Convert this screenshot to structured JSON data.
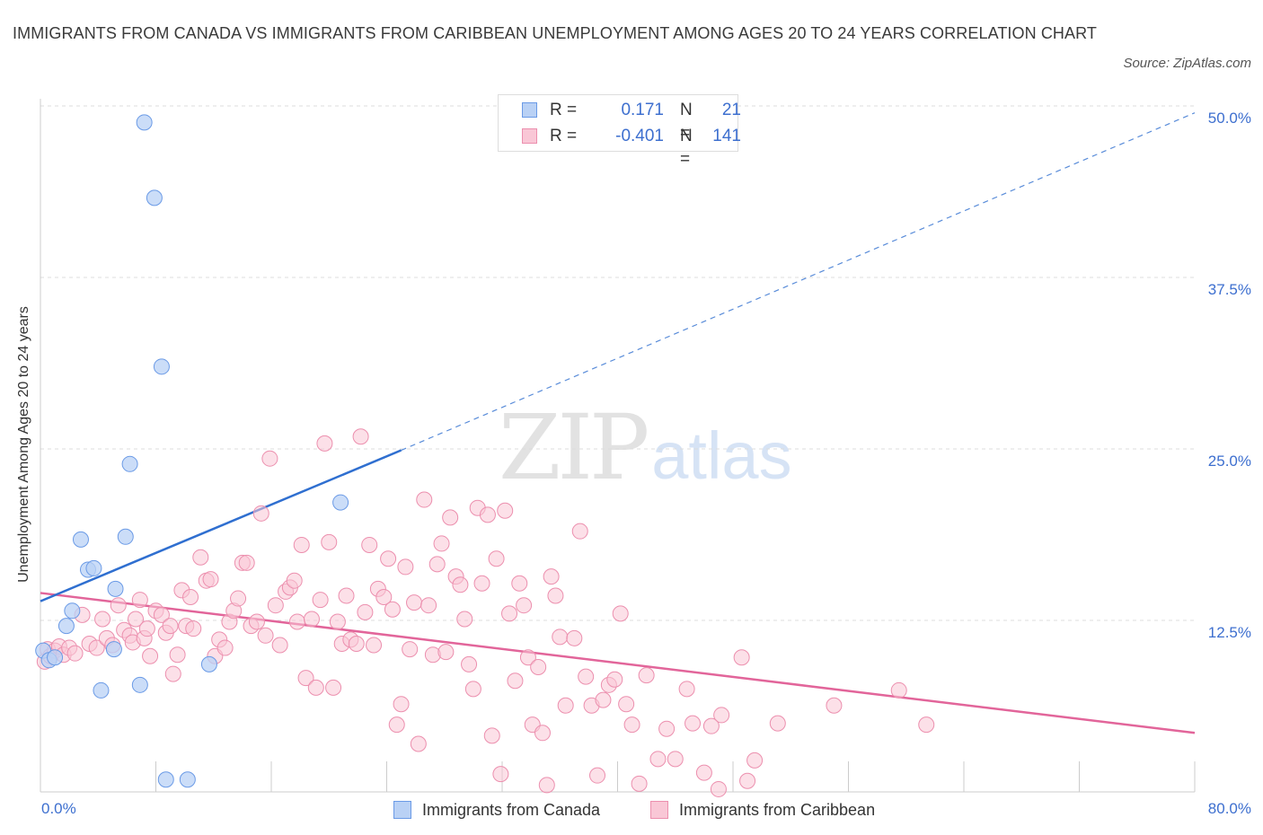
{
  "title": "IMMIGRANTS FROM CANADA VS IMMIGRANTS FROM CARIBBEAN UNEMPLOYMENT AMONG AGES 20 TO 24 YEARS CORRELATION CHART",
  "source": "Source: ZipAtlas.com",
  "watermark": {
    "zip": "ZIP",
    "atlas": "atlas"
  },
  "colors": {
    "canada_fill": "#b9d1f5",
    "canada_stroke": "#6a9ae6",
    "canada_line": "#2f6fd0",
    "caribbean_fill": "#f9c7d6",
    "caribbean_stroke": "#ec8fae",
    "caribbean_line": "#e2659a",
    "tick_label": "#3d6fcf",
    "grid": "#dcdcdc"
  },
  "legend_top": {
    "rows": [
      {
        "r_label": "R =",
        "r_value": "0.171",
        "n_label": "N =",
        "n_value": "21"
      },
      {
        "r_label": "R =",
        "r_value": "-0.401",
        "n_label": "N =",
        "n_value": "141"
      }
    ]
  },
  "legend_bottom": {
    "canada": "Immigrants from Canada",
    "caribbean": "Immigrants from Caribbean"
  },
  "chart_data": {
    "type": "scatter",
    "title": "IMMIGRANTS FROM CANADA VS IMMIGRANTS FROM CARIBBEAN UNEMPLOYMENT AMONG AGES 20 TO 24 YEARS CORRELATION CHART",
    "xlabel": "",
    "ylabel": "Unemployment Among Ages 20 to 24 years",
    "xlim": [
      0,
      80
    ],
    "ylim": [
      0,
      50
    ],
    "x_tick_labels": [
      {
        "value": 0,
        "label": "0.0%"
      },
      {
        "value": 80,
        "label": "80.0%"
      }
    ],
    "y_tick_labels": [
      {
        "value": 12.5,
        "label": "12.5%"
      },
      {
        "value": 25,
        "label": "25.0%"
      },
      {
        "value": 37.5,
        "label": "37.5%"
      },
      {
        "value": 50,
        "label": "50.0%"
      }
    ],
    "grid": true,
    "legend_position": "top-center",
    "series": [
      {
        "name": "Immigrants from Canada",
        "stats": {
          "R": 0.171,
          "N": 21
        },
        "points": [
          [
            0.2,
            10.3
          ],
          [
            0.6,
            9.6
          ],
          [
            1.0,
            9.8
          ],
          [
            1.8,
            12.1
          ],
          [
            2.2,
            13.2
          ],
          [
            2.8,
            18.4
          ],
          [
            3.3,
            16.2
          ],
          [
            3.7,
            16.3
          ],
          [
            4.2,
            7.4
          ],
          [
            5.1,
            10.4
          ],
          [
            5.2,
            14.8
          ],
          [
            5.9,
            18.6
          ],
          [
            6.2,
            23.9
          ],
          [
            6.9,
            7.8
          ],
          [
            7.2,
            48.8
          ],
          [
            7.9,
            43.3
          ],
          [
            8.4,
            31.0
          ],
          [
            8.7,
            0.9
          ],
          [
            10.2,
            0.9
          ],
          [
            11.7,
            9.3
          ],
          [
            20.8,
            21.1
          ]
        ],
        "trend_solid": [
          [
            0,
            13.9
          ],
          [
            25,
            24.9
          ]
        ],
        "trend_dashed": [
          [
            25,
            24.9
          ],
          [
            80,
            49.5
          ]
        ]
      },
      {
        "name": "Immigrants from Caribbean",
        "stats": {
          "R": -0.401,
          "N": 141
        },
        "points": [
          [
            0.3,
            9.5
          ],
          [
            0.5,
            10.4
          ],
          [
            0.7,
            9.9
          ],
          [
            1.0,
            10.3
          ],
          [
            1.3,
            10.6
          ],
          [
            1.6,
            10.0
          ],
          [
            2.0,
            10.5
          ],
          [
            2.4,
            10.1
          ],
          [
            2.9,
            12.9
          ],
          [
            3.4,
            10.8
          ],
          [
            3.9,
            10.5
          ],
          [
            4.3,
            12.6
          ],
          [
            4.6,
            11.2
          ],
          [
            5.0,
            10.7
          ],
          [
            5.4,
            13.6
          ],
          [
            5.8,
            11.8
          ],
          [
            6.2,
            11.4
          ],
          [
            6.4,
            10.9
          ],
          [
            6.6,
            12.6
          ],
          [
            6.9,
            14.0
          ],
          [
            7.2,
            11.2
          ],
          [
            7.4,
            11.9
          ],
          [
            7.6,
            9.9
          ],
          [
            8.0,
            13.2
          ],
          [
            8.4,
            12.9
          ],
          [
            8.7,
            11.6
          ],
          [
            9.0,
            12.1
          ],
          [
            9.2,
            8.6
          ],
          [
            9.5,
            10.0
          ],
          [
            9.8,
            14.7
          ],
          [
            10.1,
            12.1
          ],
          [
            10.4,
            14.2
          ],
          [
            10.6,
            11.9
          ],
          [
            11.1,
            17.1
          ],
          [
            11.5,
            15.4
          ],
          [
            11.8,
            15.5
          ],
          [
            12.1,
            9.9
          ],
          [
            12.4,
            11.1
          ],
          [
            12.8,
            10.5
          ],
          [
            13.1,
            12.4
          ],
          [
            13.4,
            13.2
          ],
          [
            13.7,
            14.1
          ],
          [
            14.0,
            16.7
          ],
          [
            14.3,
            16.7
          ],
          [
            14.6,
            12.1
          ],
          [
            15.0,
            12.4
          ],
          [
            15.3,
            20.3
          ],
          [
            15.6,
            11.4
          ],
          [
            15.9,
            24.3
          ],
          [
            16.3,
            13.6
          ],
          [
            16.6,
            10.7
          ],
          [
            17.0,
            14.6
          ],
          [
            17.3,
            14.9
          ],
          [
            17.6,
            15.4
          ],
          [
            17.8,
            12.4
          ],
          [
            18.1,
            18.0
          ],
          [
            18.4,
            8.3
          ],
          [
            18.8,
            12.6
          ],
          [
            19.1,
            7.6
          ],
          [
            19.4,
            14.0
          ],
          [
            19.7,
            25.4
          ],
          [
            20.0,
            18.2
          ],
          [
            20.3,
            7.6
          ],
          [
            20.6,
            12.4
          ],
          [
            20.9,
            10.8
          ],
          [
            21.2,
            14.3
          ],
          [
            21.5,
            11.1
          ],
          [
            21.9,
            10.8
          ],
          [
            22.2,
            25.9
          ],
          [
            22.5,
            13.1
          ],
          [
            22.8,
            18.0
          ],
          [
            23.1,
            10.7
          ],
          [
            23.4,
            14.8
          ],
          [
            23.8,
            14.2
          ],
          [
            24.1,
            17.0
          ],
          [
            24.4,
            13.3
          ],
          [
            24.7,
            4.9
          ],
          [
            25.0,
            6.4
          ],
          [
            25.3,
            16.4
          ],
          [
            25.6,
            10.4
          ],
          [
            25.9,
            13.8
          ],
          [
            26.2,
            3.5
          ],
          [
            26.6,
            21.3
          ],
          [
            26.9,
            13.6
          ],
          [
            27.2,
            10.0
          ],
          [
            27.5,
            16.6
          ],
          [
            27.8,
            18.1
          ],
          [
            28.1,
            10.2
          ],
          [
            28.4,
            20.0
          ],
          [
            28.8,
            15.7
          ],
          [
            29.1,
            15.1
          ],
          [
            29.4,
            12.6
          ],
          [
            29.7,
            9.3
          ],
          [
            30.0,
            7.5
          ],
          [
            30.3,
            20.7
          ],
          [
            30.6,
            15.2
          ],
          [
            31.0,
            20.2
          ],
          [
            31.3,
            4.1
          ],
          [
            31.6,
            17.0
          ],
          [
            31.9,
            1.3
          ],
          [
            32.2,
            20.5
          ],
          [
            32.5,
            13.0
          ],
          [
            32.9,
            8.1
          ],
          [
            33.2,
            15.2
          ],
          [
            33.5,
            13.6
          ],
          [
            33.8,
            9.8
          ],
          [
            34.1,
            4.9
          ],
          [
            34.5,
            9.1
          ],
          [
            34.8,
            4.3
          ],
          [
            35.1,
            0.5
          ],
          [
            35.4,
            15.7
          ],
          [
            35.7,
            14.3
          ],
          [
            36.0,
            11.3
          ],
          [
            36.4,
            6.3
          ],
          [
            37.0,
            11.2
          ],
          [
            37.4,
            19.0
          ],
          [
            37.8,
            8.4
          ],
          [
            38.2,
            6.3
          ],
          [
            38.6,
            1.2
          ],
          [
            39.0,
            6.7
          ],
          [
            39.4,
            7.8
          ],
          [
            39.8,
            8.2
          ],
          [
            40.2,
            13.0
          ],
          [
            40.6,
            6.4
          ],
          [
            41.0,
            4.9
          ],
          [
            41.5,
            0.6
          ],
          [
            42.0,
            8.5
          ],
          [
            42.8,
            2.4
          ],
          [
            43.4,
            4.6
          ],
          [
            44.0,
            2.4
          ],
          [
            44.8,
            7.5
          ],
          [
            45.2,
            5.0
          ],
          [
            46.0,
            1.4
          ],
          [
            46.5,
            4.8
          ],
          [
            47.2,
            5.6
          ],
          [
            48.6,
            9.8
          ],
          [
            49.0,
            0.8
          ],
          [
            49.5,
            2.3
          ],
          [
            51.1,
            5.0
          ],
          [
            55.0,
            6.3
          ],
          [
            59.5,
            7.4
          ],
          [
            61.4,
            4.9
          ],
          [
            47.0,
            0.2
          ]
        ],
        "trend_solid": [
          [
            0,
            14.5
          ],
          [
            80,
            4.3
          ]
        ]
      }
    ]
  }
}
